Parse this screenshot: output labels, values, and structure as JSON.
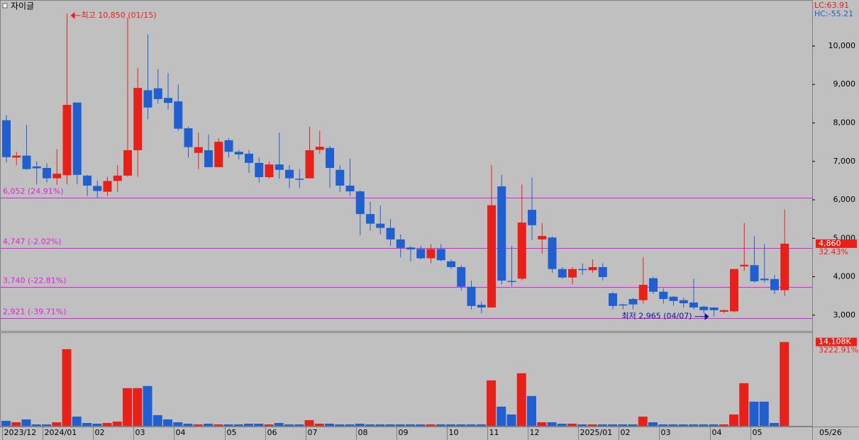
{
  "chart_data": {
    "type": "candlestick",
    "title": "자이글",
    "lc": "LC:63.91",
    "hc": "HC:-55.21",
    "lc_color": "#e8201a",
    "hc_color": "#1f5fcf",
    "up_color": "#e8201a",
    "down_color": "#1f5fcf",
    "categories": [
      "2023/12",
      null,
      null,
      null,
      "2024/01",
      null,
      null,
      null,
      null,
      "02",
      null,
      null,
      null,
      "03",
      null,
      null,
      null,
      "04",
      null,
      null,
      null,
      null,
      "05",
      null,
      null,
      null,
      "06",
      null,
      null,
      null,
      "07",
      null,
      null,
      null,
      null,
      "08",
      null,
      null,
      null,
      "09",
      null,
      null,
      null,
      null,
      "10",
      null,
      null,
      null,
      "11",
      null,
      null,
      null,
      "12",
      null,
      null,
      null,
      null,
      "2025/01",
      null,
      null,
      null,
      "02",
      null,
      null,
      null,
      "03",
      null,
      null,
      null,
      null,
      "04",
      null,
      null,
      null,
      "05",
      null,
      null,
      null
    ],
    "open": [
      8070,
      7100,
      7150,
      6870,
      6830,
      6560,
      6640,
      8530,
      6630,
      6360,
      6210,
      6490,
      6630,
      7290,
      8850,
      8900,
      8650,
      8560,
      7860,
      7220,
      7290,
      6850,
      7550,
      7250,
      7200,
      6960,
      6590,
      6920,
      6780,
      6550,
      6560,
      7300,
      7350,
      6780,
      6370,
      6220,
      5630,
      5380,
      5270,
      4970,
      4760,
      4720,
      4480,
      4720,
      4400,
      4250,
      3740,
      3270,
      3200,
      6350,
      3890,
      3950,
      5740,
      4970,
      5020,
      4200,
      3980,
      4200,
      4170,
      4250,
      3570,
      3280,
      3420,
      3390,
      3960,
      3610,
      3480,
      3390,
      3330,
      3220,
      3200,
      3090,
      3100,
      4270,
      4300,
      3950,
      3940,
      3650
    ],
    "high": [
      8200,
      7250,
      7950,
      7000,
      6950,
      7320,
      10850,
      8530,
      6650,
      6500,
      6600,
      6900,
      10740,
      9430,
      10300,
      9400,
      9300,
      9000,
      7900,
      7750,
      7700,
      7600,
      7600,
      7300,
      7300,
      7100,
      7000,
      7750,
      6900,
      6800,
      7900,
      7800,
      7400,
      6900,
      7070,
      6250,
      5950,
      5850,
      5500,
      5100,
      4800,
      4800,
      4850,
      4850,
      4450,
      4300,
      3900,
      3350,
      6900,
      6650,
      4800,
      6400,
      6580,
      5400,
      5050,
      4250,
      4250,
      4350,
      4450,
      4350,
      3600,
      3300,
      3450,
      4500,
      4000,
      3700,
      3500,
      3450,
      3950,
      3250,
      3200,
      3150,
      4200,
      5400,
      5050,
      4850,
      4050,
      5750
    ],
    "low": [
      6970,
      6900,
      6780,
      6400,
      6450,
      6390,
      6400,
      6400,
      6100,
      6050,
      6100,
      6200,
      6600,
      6600,
      8100,
      8500,
      8350,
      7800,
      7100,
      6800,
      6850,
      6850,
      7100,
      7050,
      6700,
      6450,
      6550,
      6550,
      6300,
      6300,
      6550,
      7200,
      6310,
      6200,
      6100,
      5080,
      5200,
      5100,
      4800,
      4500,
      4400,
      4450,
      4350,
      4400,
      4200,
      3650,
      3150,
      3050,
      3200,
      3800,
      3750,
      3900,
      4950,
      4600,
      4100,
      3950,
      3800,
      4050,
      4100,
      3900,
      3150,
      3150,
      3150,
      3300,
      3550,
      3300,
      3250,
      3200,
      3150,
      3050,
      2965,
      3050,
      3070,
      4150,
      3850,
      3850,
      3550,
      3500
    ],
    "close": [
      7110,
      7150,
      6800,
      6820,
      6560,
      6680,
      8470,
      6650,
      6370,
      6230,
      6490,
      6630,
      7290,
      8910,
      8400,
      8620,
      8520,
      7850,
      7370,
      7370,
      6850,
      7510,
      7250,
      7180,
      6960,
      6590,
      6920,
      6780,
      6560,
      6530,
      7290,
      7380,
      6830,
      6370,
      6220,
      5630,
      5380,
      5270,
      4970,
      4750,
      4710,
      4480,
      4720,
      4430,
      4250,
      3740,
      3240,
      3200,
      5860,
      3900,
      3870,
      5410,
      5340,
      5060,
      4200,
      3980,
      4200,
      4190,
      4250,
      3990,
      3240,
      3270,
      3280,
      3790,
      3610,
      3420,
      3370,
      3310,
      3200,
      3130,
      3130,
      3130,
      4200,
      4310,
      3880,
      3910,
      3650,
      4860
    ],
    "volume": [
      840,
      600,
      1080,
      240,
      240,
      600,
      12900,
      1550,
      480,
      360,
      480,
      720,
      6340,
      6340,
      6700,
      1800,
      1080,
      600,
      360,
      240,
      360,
      240,
      240,
      240,
      360,
      360,
      240,
      480,
      240,
      240,
      960,
      360,
      360,
      240,
      240,
      360,
      240,
      240,
      240,
      240,
      240,
      240,
      240,
      240,
      240,
      240,
      240,
      240,
      7650,
      3230,
      1910,
      8850,
      5020,
      600,
      600,
      360,
      360,
      240,
      240,
      240,
      240,
      240,
      240,
      1550,
      600,
      240,
      240,
      240,
      240,
      240,
      240,
      240,
      1910,
      7180,
      4070,
      4070,
      480,
      14108
    ],
    "ylim": [
      2610,
      11160
    ],
    "yticks": [
      {
        "value": 3000,
        "label": "3,000"
      },
      {
        "value": 4000,
        "label": "4,000"
      },
      {
        "value": 5000,
        "label": "5,000"
      },
      {
        "value": 6000,
        "label": "6,000"
      },
      {
        "value": 7000,
        "label": "7,000"
      },
      {
        "value": 8000,
        "label": "8,000"
      },
      {
        "value": 9000,
        "label": "9,000"
      },
      {
        "value": 10000,
        "label": "10,000"
      }
    ],
    "volume_ylim": [
      0,
      15500
    ],
    "level_color": "#e020e0",
    "levels": [
      {
        "value": 6052,
        "label": "6,052 (24.91%)"
      },
      {
        "value": 4747,
        "label": "4,747 (-2.02%)"
      },
      {
        "value": 3740,
        "label": "3,740 (-22.81%)"
      },
      {
        "value": 2921,
        "label": "2,921 (-39.71%)"
      }
    ],
    "high_annotation": "최고 10,850 (01/15)",
    "low_annotation": "최저 2,965 (04/07)",
    "last_price_label": "4,860",
    "last_change": "32.43%",
    "volume_last_label": "14,108K",
    "volume_change": "3222.91%",
    "current_date": "05/26"
  }
}
